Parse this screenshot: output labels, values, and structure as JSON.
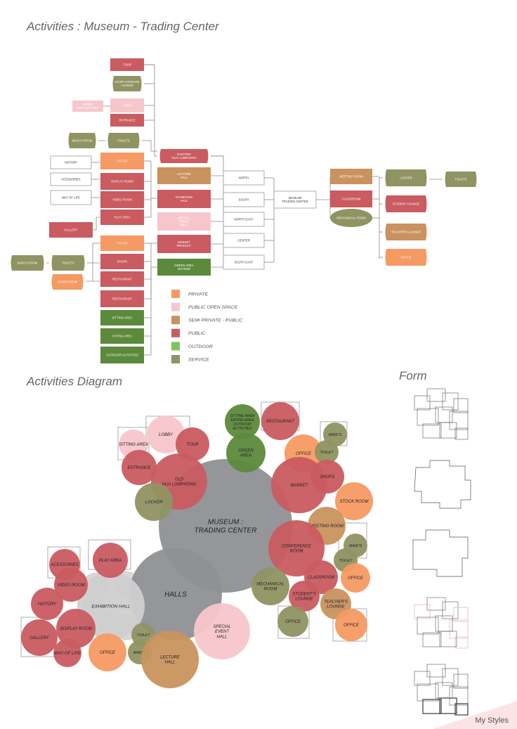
{
  "headings": {
    "activities": "Activities : Museum - Trading Center",
    "diagram": "Activities Diagram",
    "form": "Form"
  },
  "watermark": "My Styles",
  "colors": {
    "private": "#f59a63",
    "public_open": "#f7c6cc",
    "semi": "#c9925e",
    "public": "#c95b61",
    "outdoor": "#5c8a3c",
    "service": "#8f9462",
    "hall": "#8e9094",
    "grey_light": "#cfcfd0",
    "line": "#8a8a8a"
  },
  "legend": [
    {
      "label": "PRIVATE",
      "key": "private"
    },
    {
      "label": "PUBLIC OPEN SPACE",
      "key": "public_open"
    },
    {
      "label": "SEMI PRIVATE - PUBLIC",
      "key": "semi"
    },
    {
      "label": "PUBLIC",
      "key": "public"
    },
    {
      "label": "OUTDOOR",
      "key": "outdoor_legend"
    },
    {
      "label": "SERVICE",
      "key": "service"
    }
  ],
  "tree": {
    "root": "MUSEUM\nTRADING CENTER",
    "zones": [
      "NORTH",
      "SOUTH",
      "NORTH EAST",
      "CENTER",
      "SOUTH EAST"
    ],
    "halls": [
      {
        "label": "EXISTING\nHUAI LUMPHONG",
        "key": "public",
        "shape": "oct"
      },
      {
        "label": "LECTURE\nHALL",
        "key": "semi",
        "shape": "rect"
      },
      {
        "label": "EXHIBITION\nHALL",
        "key": "public",
        "shape": "rect"
      },
      {
        "label": "SPECIAL\nEVENT\nHALL",
        "key": "public_open",
        "shape": "rect"
      },
      {
        "label": "MARKET\nPRODUCT",
        "key": "public",
        "shape": "rect"
      },
      {
        "label": "GREEN AREA\nOUTSIDE",
        "key": "outdoor",
        "shape": "rect"
      }
    ],
    "north_items": [
      {
        "label": "TOUR",
        "key": "public",
        "shape": "rect"
      },
      {
        "label": "STUFF STORAGE\nLOCKER",
        "key": "service",
        "shape": "oct"
      },
      {
        "label": "LOBBY",
        "key": "public_open",
        "shape": "rect"
      },
      {
        "label": "ENTRANCE",
        "key": "public",
        "shape": "rect"
      }
    ],
    "inside_resting": "INSIDE\nRESTING AREA",
    "maids_room": "MAID'S ROOM",
    "toilets": "TOILETS",
    "exhibit_items": [
      {
        "label": "OFFICE",
        "key": "private"
      },
      {
        "label": "DISPLAY ROOM",
        "key": "public"
      },
      {
        "label": "VIDEO ROOM",
        "key": "public"
      },
      {
        "label": "PLAY AREA",
        "key": "public"
      }
    ],
    "display_sub": [
      "HISTORY",
      "ACESSORIES",
      "WAY OF LIFE"
    ],
    "gallery": "GALLERY",
    "market_items": [
      {
        "label": "OFFICE",
        "key": "private"
      },
      {
        "label": "SHOPS",
        "key": "public"
      },
      {
        "label": "RESTAURANT",
        "key": "public"
      },
      {
        "label": "RESTAURANT",
        "key": "public"
      }
    ],
    "stock_room": "STOCK ROOM",
    "green_items": [
      "SITTING AREA",
      "EATING AREA",
      "OUTDOOR ACTIVITIES"
    ],
    "right_items": [
      {
        "label": "MEETING ROOM",
        "key": "semi",
        "shape": "rect"
      },
      {
        "label": "CLASSROOM",
        "key": "public",
        "shape": "rect"
      },
      {
        "label": "MECHANICAL ROOM",
        "key": "service",
        "shape": "oval"
      }
    ],
    "right_sub": [
      {
        "label": "LOCKER",
        "key": "service"
      },
      {
        "label": "STUDENT LOUNGE",
        "key": "public"
      },
      {
        "label": "TEACHER'S LOUNGE",
        "key": "semi"
      },
      {
        "label": "OFFICE",
        "key": "private"
      }
    ],
    "right_toilets": "TOILETS"
  },
  "bubbles": [
    {
      "label": "MUSEUM :\nTRADING CENTER",
      "key": "hall"
    },
    {
      "label": "HALLS",
      "key": "hall"
    },
    {
      "label": "EXHIBITION HALL",
      "key": "grey_light"
    },
    {
      "label": "SITTING AREA\nEATING AREA\nOUTDOOR\nACTIVITIES",
      "key": "outdoor"
    },
    {
      "label": "GREEN\nAREA",
      "key": "outdoor"
    },
    {
      "label": "RESTAURANT",
      "key": "public"
    },
    {
      "label": "LOBBY",
      "key": "public_open"
    },
    {
      "label": "SITTING AREA",
      "key": "public_open"
    },
    {
      "label": "TOUR",
      "key": "public"
    },
    {
      "label": "ENTRANCE",
      "key": "public"
    },
    {
      "label": "OLD\nHUA LUMPHONG",
      "key": "public"
    },
    {
      "label": "LOCKER",
      "key": "service"
    },
    {
      "label": "OFFICE",
      "key": "private"
    },
    {
      "label": "MAID'S",
      "key": "service"
    },
    {
      "label": "TOILET",
      "key": "service"
    },
    {
      "label": "MARKET",
      "key": "public"
    },
    {
      "label": "SHOPS",
      "key": "public"
    },
    {
      "label": "STOCK ROOM",
      "key": "private"
    },
    {
      "label": "MEETING ROOM",
      "key": "semi"
    },
    {
      "label": "CONFERENCE\nROOM",
      "key": "public"
    },
    {
      "label": "MAID'S",
      "key": "service"
    },
    {
      "label": "TOILET",
      "key": "service"
    },
    {
      "label": "OFFICE",
      "key": "private"
    },
    {
      "label": "CLASSROOM",
      "key": "public"
    },
    {
      "label": "MECHANICAL\nROOM",
      "key": "service"
    },
    {
      "label": "STUDENT'S\nLOUNGE",
      "key": "public"
    },
    {
      "label": "TEACHER'S\nLOUNGE",
      "key": "semi"
    },
    {
      "label": "OFFICE",
      "key": "service"
    },
    {
      "label": "OFFICE",
      "key": "private"
    },
    {
      "label": "PLAY AREA",
      "key": "public"
    },
    {
      "label": "ACESSORIES",
      "key": "public"
    },
    {
      "label": "VIDEO ROOM",
      "key": "public"
    },
    {
      "label": "HISTORY",
      "key": "public"
    },
    {
      "label": "DISPLAY ROOM",
      "key": "public"
    },
    {
      "label": "GALLERY",
      "key": "public"
    },
    {
      "label": "WAY OF LIFE",
      "key": "public"
    },
    {
      "label": "OFFICE",
      "key": "private"
    },
    {
      "label": "TOILET",
      "key": "service"
    },
    {
      "label": "MAID'S",
      "key": "service"
    },
    {
      "label": "LECTURE\nHALL",
      "key": "semi"
    },
    {
      "label": "SPECIAL\nEVENT\nHALL",
      "key": "public_open"
    }
  ],
  "outdoor_legend_color": "#7dc35a"
}
